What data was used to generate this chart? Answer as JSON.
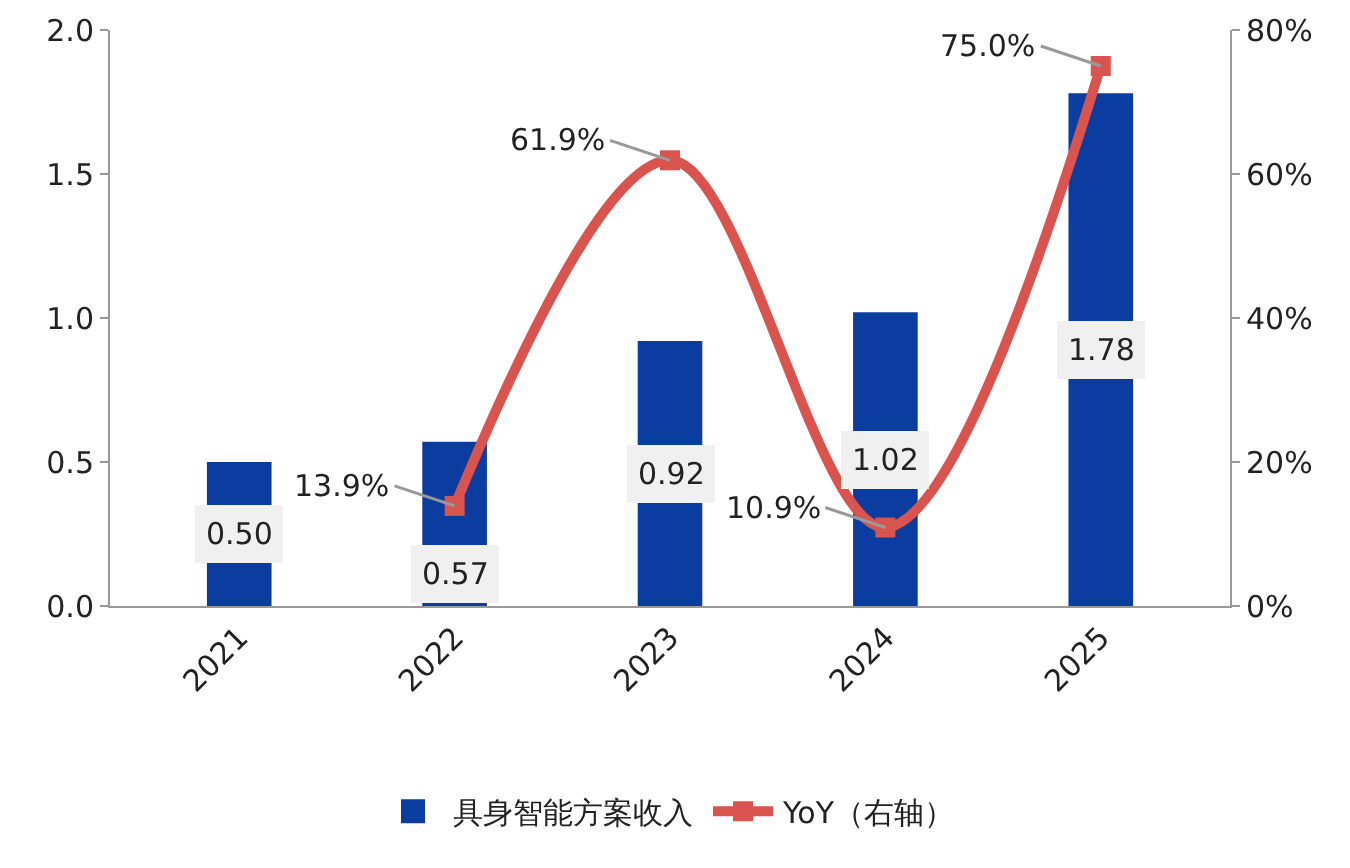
{
  "chart_data": {
    "type": "bar",
    "categories": [
      "2021",
      "2022",
      "2023",
      "2024",
      "2025"
    ],
    "series": [
      {
        "name": "具身智能方案收入",
        "color": "#0a3d9f",
        "values": [
          0.5,
          0.57,
          0.92,
          1.02,
          1.78
        ],
        "value_labels": [
          "0.50",
          "0.57",
          "0.92",
          "1.02",
          "1.78"
        ]
      },
      {
        "name": "YoY（右轴）",
        "type": "line",
        "axis": "y2",
        "color": "#d9534f",
        "marker": "square",
        "values": [
          null,
          13.9,
          61.9,
          10.9,
          75.0
        ],
        "value_labels": [
          null,
          "13.9%",
          "61.9%",
          "10.9%",
          "75.0%"
        ]
      }
    ],
    "ylim": [
      0,
      2
    ],
    "yticks": [
      {
        "value": 0,
        "label": "0.0"
      },
      {
        "value": 0.5,
        "label": "0.5"
      },
      {
        "value": 1,
        "label": "1.0"
      },
      {
        "value": 1.5,
        "label": "1.5"
      },
      {
        "value": 2,
        "label": "2.0"
      }
    ],
    "y2lim": [
      0,
      80
    ],
    "y2ticks": [
      {
        "value": 0,
        "label": "0%"
      },
      {
        "value": 20,
        "label": "20%"
      },
      {
        "value": 40,
        "label": "40%"
      },
      {
        "value": 60,
        "label": "60%"
      },
      {
        "value": 80,
        "label": "80%"
      }
    ],
    "grid": false,
    "legend": "bottom"
  }
}
